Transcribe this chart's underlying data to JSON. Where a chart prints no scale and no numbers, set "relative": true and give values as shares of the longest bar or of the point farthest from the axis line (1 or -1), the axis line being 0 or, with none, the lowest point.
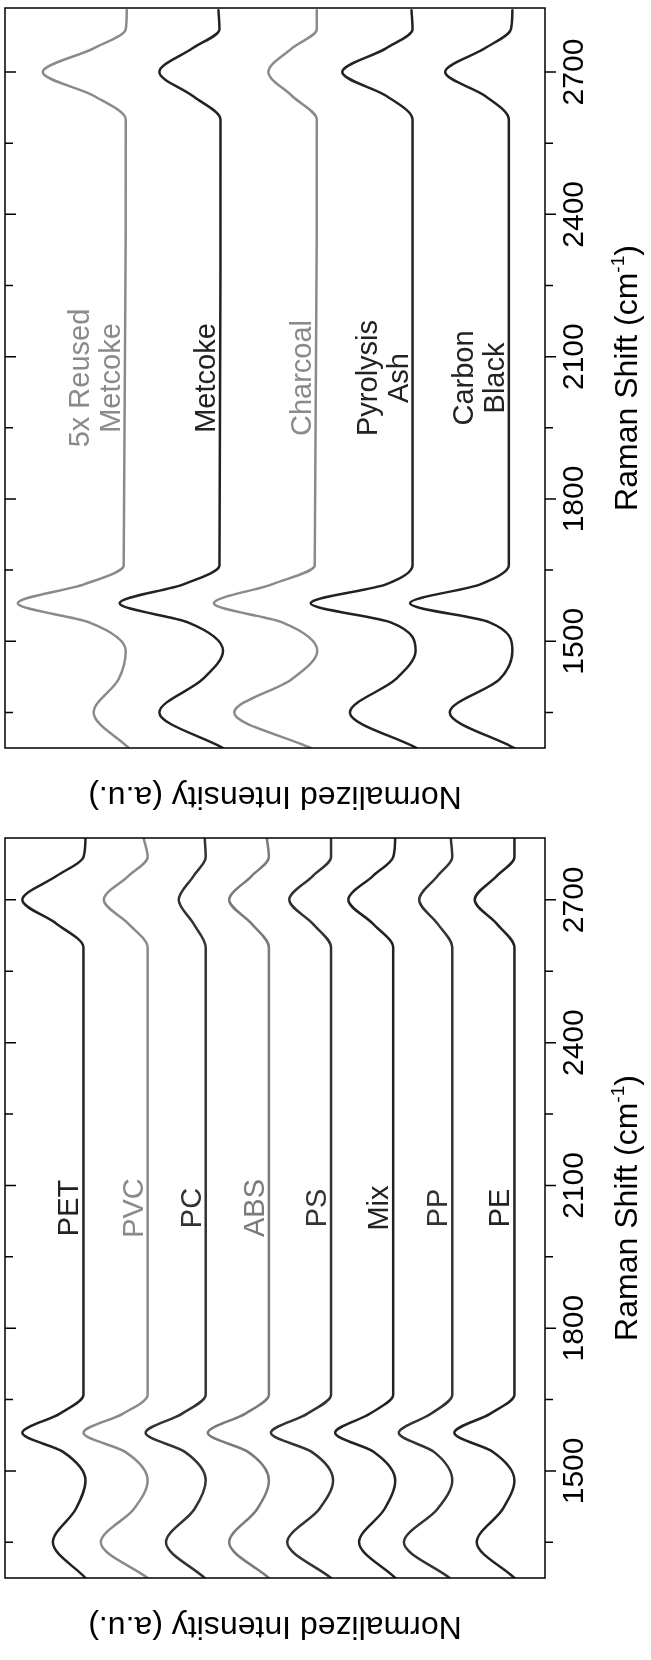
{
  "chart_data": [
    {
      "type": "line",
      "orientation": "horizontal",
      "relative": true,
      "ylabel": "Raman Shift (cm$^{-1}$)",
      "xlabel": "Normalized Intensity (a.u.)",
      "marker": "none",
      "line_style": "solid",
      "ylim": [
        1275,
        2835
      ],
      "yticks": [
        {
          "value": 1350,
          "label": null
        },
        1500,
        {
          "value": 1650,
          "label": null
        },
        1800,
        {
          "value": 1950,
          "label": null
        },
        2100,
        {
          "value": 2250,
          "label": null
        },
        2400,
        {
          "value": 2550,
          "label": null
        },
        2700
      ],
      "x": [
        1275,
        1350,
        1420,
        1480,
        1540,
        1580,
        1620,
        1660,
        2600,
        2650,
        2700,
        2750,
        2790,
        2830
      ],
      "series": [
        {
          "name": "5x Reused Metcoke",
          "color": "#8a8a8a",
          "values": [
            0.243,
            0.174,
            0.223,
            0.237,
            0.165,
            0.025,
            0.155,
            0.233,
            0.237,
            0.174,
            0.074,
            0.174,
            0.237,
            0.239
          ]
        },
        {
          "name": "Metcoke",
          "color": "#222222",
          "values": [
            0.428,
            0.303,
            0.388,
            0.428,
            0.359,
            0.225,
            0.35,
            0.421,
            0.423,
            0.368,
            0.303,
            0.368,
            0.421,
            0.419
          ]
        },
        {
          "name": "Charcoal",
          "color": "#8a8a8a",
          "values": [
            0.6,
            0.45,
            0.563,
            0.613,
            0.544,
            0.41,
            0.524,
            0.608,
            0.612,
            0.563,
            0.517,
            0.563,
            0.612,
            0.612
          ]
        },
        {
          "name": "Pyrolysis Ash",
          "color": "#222222",
          "values": [
            0.808,
            0.677,
            0.767,
            0.806,
            0.757,
            0.6,
            0.748,
            0.8,
            0.8,
            0.748,
            0.662,
            0.748,
            0.8,
            0.798
          ]
        },
        {
          "name": "Carbon Black",
          "color": "#222222",
          "values": [
            1.0,
            0.873,
            0.971,
            0.996,
            0.951,
            0.795,
            0.933,
            0.989,
            0.989,
            0.942,
            0.864,
            0.942,
            0.993,
            0.996
          ]
        }
      ]
    },
    {
      "type": "line",
      "orientation": "horizontal",
      "relative": true,
      "ylabel": "Raman Shift (cm$^{-1}$)",
      "xlabel": "Normalized Intensity (a.u.)",
      "marker": "none",
      "line_style": "solid",
      "ylim": [
        1275,
        2830
      ],
      "yticks": [
        {
          "value": 1350,
          "label": null
        },
        1500,
        {
          "value": 1650,
          "label": null
        },
        1800,
        {
          "value": 1950,
          "label": null
        },
        2100,
        {
          "value": 2250,
          "label": null
        },
        2400,
        {
          "value": 2550,
          "label": null
        },
        2700
      ],
      "x": [
        1275,
        1350,
        1420,
        1480,
        1540,
        1580,
        1620,
        1660,
        2600,
        2650,
        2700,
        2750,
        2790,
        2830
      ],
      "series": [
        {
          "name": "PET",
          "color": "#222222",
          "values": [
            0.158,
            0.094,
            0.139,
            0.158,
            0.114,
            0.034,
            0.107,
            0.154,
            0.154,
            0.101,
            0.034,
            0.101,
            0.154,
            0.158
          ]
        },
        {
          "name": "PVC",
          "color": "#8a8a8a",
          "values": [
            0.28,
            0.188,
            0.253,
            0.28,
            0.236,
            0.154,
            0.231,
            0.28,
            0.28,
            0.242,
            0.194,
            0.242,
            0.28,
            0.272
          ]
        },
        {
          "name": "PC",
          "color": "#333333",
          "values": [
            0.392,
            0.316,
            0.372,
            0.394,
            0.353,
            0.276,
            0.347,
            0.394,
            0.394,
            0.37,
            0.341,
            0.37,
            0.394,
            0.392
          ]
        },
        {
          "name": "ABS",
          "color": "#7a7a7a",
          "values": [
            0.518,
            0.44,
            0.495,
            0.518,
            0.477,
            0.398,
            0.471,
            0.518,
            0.518,
            0.484,
            0.44,
            0.484,
            0.518,
            0.514
          ]
        },
        {
          "name": "PS",
          "color": "#333333",
          "values": [
            0.64,
            0.554,
            0.617,
            0.644,
            0.602,
            0.522,
            0.593,
            0.64,
            0.64,
            0.604,
            0.558,
            0.604,
            0.64,
            0.64
          ]
        },
        {
          "name": "Mix",
          "color": "#222222",
          "values": [
            0.766,
            0.695,
            0.745,
            0.766,
            0.724,
            0.648,
            0.716,
            0.762,
            0.762,
            0.722,
            0.674,
            0.722,
            0.762,
            0.766
          ]
        },
        {
          "name": "PP",
          "color": "#333333",
          "values": [
            0.873,
            0.783,
            0.849,
            0.878,
            0.842,
            0.773,
            0.836,
            0.878,
            0.878,
            0.849,
            0.813,
            0.849,
            0.878,
            0.875
          ]
        },
        {
          "name": "PE",
          "color": "#222222",
          "values": [
            1.0,
            0.926,
            0.977,
            1.0,
            0.958,
            0.882,
            0.952,
            1.0,
            1.0,
            0.965,
            0.922,
            0.965,
            1.0,
            1.0
          ]
        }
      ]
    }
  ]
}
